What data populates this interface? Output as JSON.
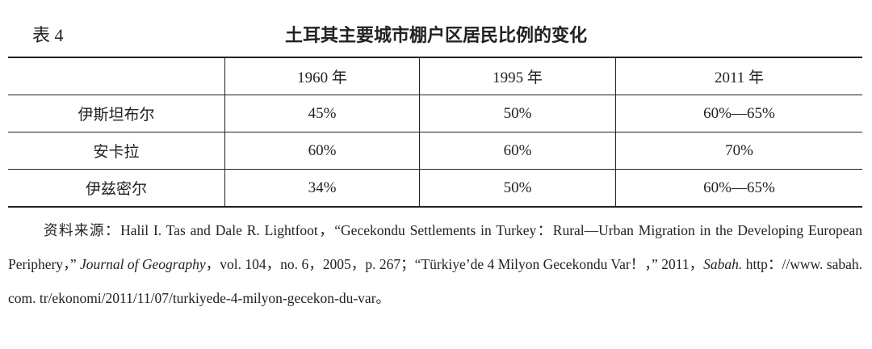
{
  "header": {
    "label": "表 4",
    "title": "土耳其主要城市棚户区居民比例的变化"
  },
  "table": {
    "columns": [
      "1960 年",
      "1995 年",
      "2011 年"
    ],
    "rows": [
      {
        "label": "伊斯坦布尔",
        "values": [
          "45%",
          "50%",
          "60%—65%"
        ]
      },
      {
        "label": "安卡拉",
        "values": [
          "60%",
          "60%",
          "70%"
        ]
      },
      {
        "label": "伊兹密尔",
        "values": [
          "34%",
          "50%",
          "60%—65%"
        ]
      }
    ]
  },
  "note": {
    "parts": [
      {
        "text": "资料来源："
      },
      {
        "text": "Halil I. Tas and Dale R. Lightfoot，“Gecekondu Settlements in Turkey：Rural—Urban Migration in the Developing European Periphery，” "
      },
      {
        "text": "Journal of Geography",
        "italic": true
      },
      {
        "text": "，vol. 104，no. 6，2005，p. 267；“Türkiye’de 4 Milyon Gecekondu Var！，” 2011，"
      },
      {
        "text": "Sabah.",
        "italic": true
      },
      {
        "text": " http：//www. sabah. com. tr/ekonomi/2011/11/07/turkiyede-4-milyon-gecekon-du-var。"
      }
    ]
  }
}
